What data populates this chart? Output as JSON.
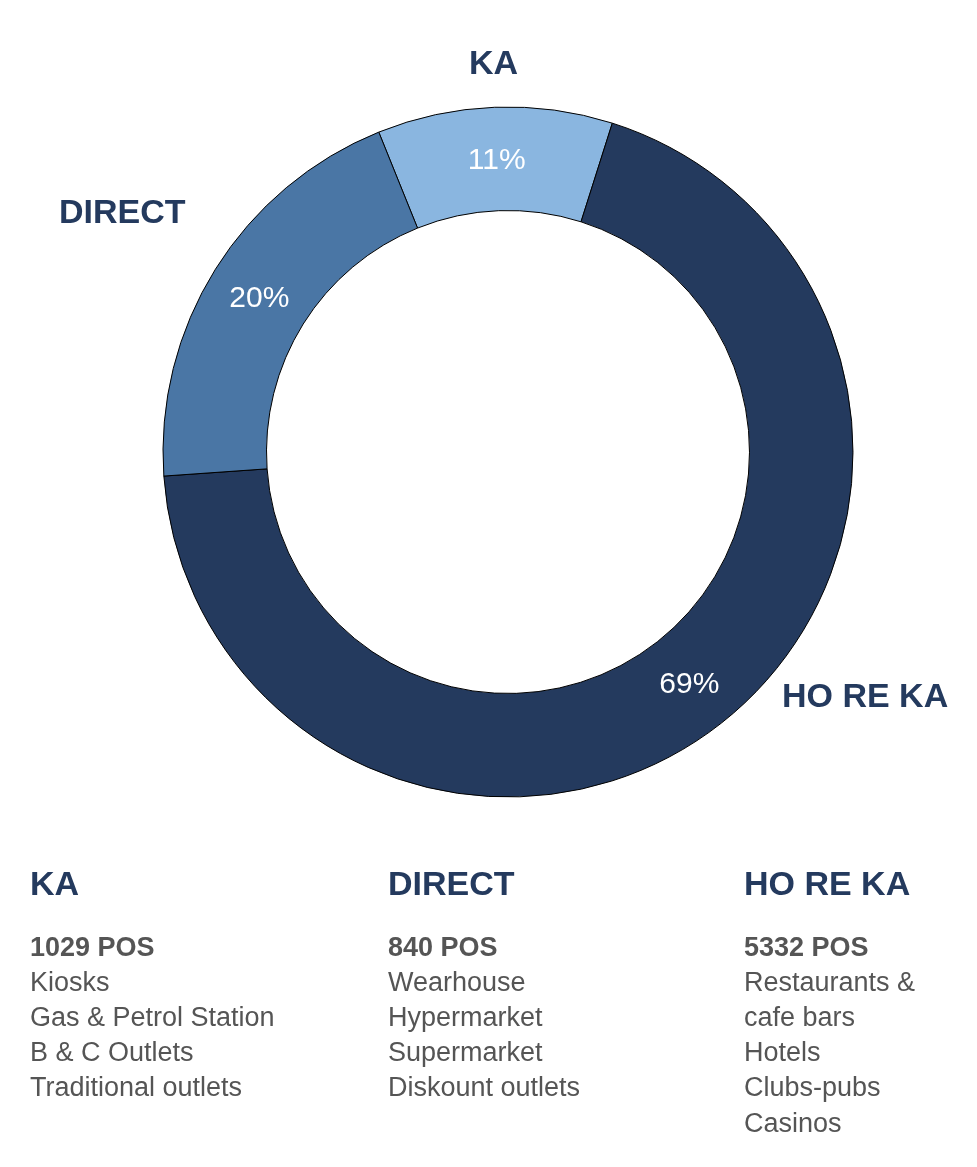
{
  "chart_data": {
    "type": "donut",
    "categories": [
      "KA",
      "HO RE KA",
      "DIRECT"
    ],
    "values": [
      11,
      69,
      20
    ],
    "colors": [
      "#8ab6e0",
      "#243a5e",
      "#4a76a5"
    ],
    "value_labels": [
      "11%",
      "69%",
      "20%"
    ],
    "legend": false,
    "annotations": [
      "KA",
      "1029 POS\nKiosks\nGas & Petrol Station\nB & C Outlets\nTraditional outlets",
      "DIRECT",
      "840 POS\nWearhouse\nHypermarket\nSupermarket\nDiskount outlets",
      "HO RE KA",
      "5332 POS\nRestaurants &\ncafe bars\nHotels\nClubs-pubs\nCasinos"
    ]
  }
}
